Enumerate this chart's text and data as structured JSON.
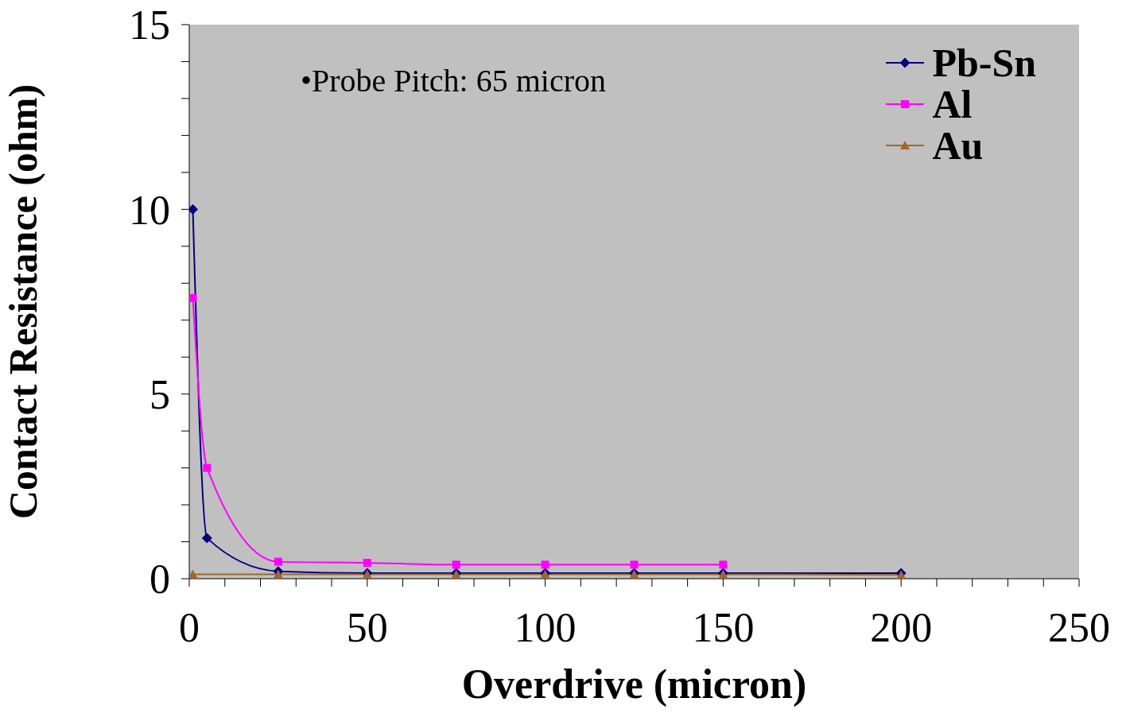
{
  "chart_data": {
    "type": "line",
    "xlabel": "Overdrive (micron)",
    "ylabel": "Contact Resistance (ohm)",
    "annotations": [
      "•Probe Pitch: 65 micron"
    ],
    "series": [
      {
        "name": "Pb-Sn",
        "color": "#000080",
        "marker": "diamond",
        "x": [
          1,
          5,
          25,
          50,
          75,
          100,
          125,
          150,
          200
        ],
        "values": [
          10,
          1.1,
          0.2,
          0.15,
          0.15,
          0.15,
          0.15,
          0.15,
          0.15
        ]
      },
      {
        "name": "Al",
        "color": "#ff00ff",
        "marker": "square",
        "x": [
          1,
          5,
          25,
          50,
          75,
          100,
          125,
          150
        ],
        "values": [
          7.6,
          3.0,
          0.46,
          0.43,
          0.38,
          0.38,
          0.38,
          0.38
        ]
      },
      {
        "name": "Au",
        "color": "#a0682c",
        "marker": "triangle",
        "x": [
          1,
          25,
          50,
          75,
          100,
          125,
          150,
          200
        ],
        "values": [
          0.12,
          0.12,
          0.12,
          0.12,
          0.12,
          0.12,
          0.12,
          0.1
        ]
      }
    ],
    "xlim": [
      0,
      250
    ],
    "xticks": [
      0,
      {
        "value": 10,
        "label": null
      },
      {
        "value": 20,
        "label": null
      },
      {
        "value": 30,
        "label": null
      },
      {
        "value": 40,
        "label": null
      },
      50,
      {
        "value": 60,
        "label": null
      },
      {
        "value": 70,
        "label": null
      },
      {
        "value": 80,
        "label": null
      },
      {
        "value": 90,
        "label": null
      },
      100,
      {
        "value": 110,
        "label": null
      },
      {
        "value": 120,
        "label": null
      },
      {
        "value": 130,
        "label": null
      },
      {
        "value": 140,
        "label": null
      },
      150,
      {
        "value": 160,
        "label": null
      },
      {
        "value": 170,
        "label": null
      },
      {
        "value": 180,
        "label": null
      },
      {
        "value": 190,
        "label": null
      },
      200,
      {
        "value": 210,
        "label": null
      },
      {
        "value": 220,
        "label": null
      },
      {
        "value": 230,
        "label": null
      },
      {
        "value": 240,
        "label": null
      },
      250
    ],
    "ylim": [
      0,
      15
    ],
    "yticks": [
      0,
      {
        "value": 1,
        "label": null
      },
      {
        "value": 2,
        "label": null
      },
      {
        "value": 3,
        "label": null
      },
      {
        "value": 4,
        "label": null
      },
      5,
      {
        "value": 6,
        "label": null
      },
      {
        "value": 7,
        "label": null
      },
      {
        "value": 8,
        "label": null
      },
      {
        "value": 9,
        "label": null
      },
      10,
      {
        "value": 11,
        "label": null
      },
      {
        "value": 12,
        "label": null
      },
      {
        "value": 13,
        "label": null
      },
      {
        "value": 14,
        "label": null
      },
      15
    ],
    "legend": "top right"
  }
}
